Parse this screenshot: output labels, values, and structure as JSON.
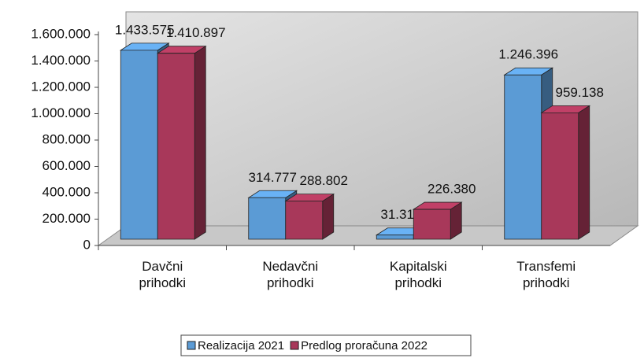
{
  "chart_data": {
    "type": "bar3d",
    "categories": [
      "Davčni prihodki",
      "Nedavčni prihodki",
      "Kapitalski prihodki",
      "Transfemi prihodki"
    ],
    "series": [
      {
        "name": "Realizacija 2021",
        "color": "#5b9bd5",
        "values": [
          1433575,
          314777,
          31311,
          1246396
        ],
        "value_labels": [
          "1.433.575",
          "314.777",
          "31.311",
          "1.246.396"
        ]
      },
      {
        "name": "Predlog proračuna 2022",
        "color": "#a8385a",
        "values": [
          1410897,
          288802,
          226380,
          959138
        ],
        "value_labels": [
          "1.410.897",
          "288.802",
          "226.380",
          "959.138"
        ]
      }
    ],
    "ylim": [
      0,
      1600000
    ],
    "yticks": [
      0,
      {
        "value": 200000,
        "label": "200.000"
      },
      {
        "value": 400000,
        "label": "400.000"
      },
      {
        "value": 600000,
        "label": "600.000"
      },
      {
        "value": 800000,
        "label": "800.000"
      },
      {
        "value": 1000000,
        "label": "1.000.000"
      },
      {
        "value": 1200000,
        "label": "1.200.000"
      },
      {
        "value": 1400000,
        "label": "1.400.000"
      },
      {
        "value": 1600000,
        "label": "1.600.000"
      }
    ],
    "legend": "bottom"
  }
}
